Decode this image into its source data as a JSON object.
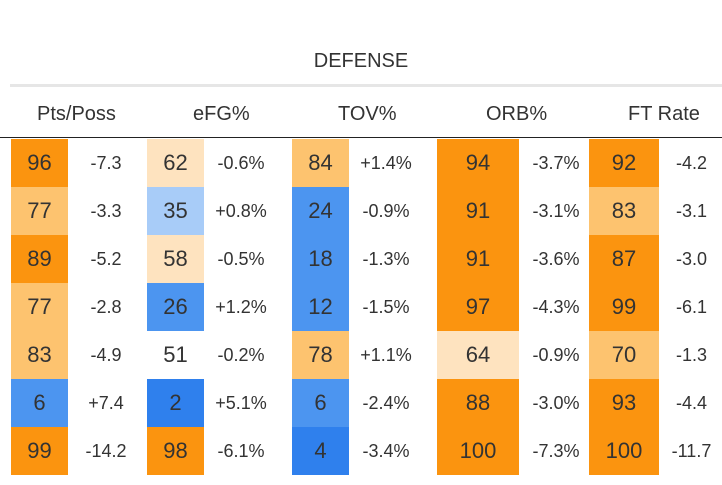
{
  "section": {
    "title": "DEFENSE"
  },
  "columns": [
    {
      "label": "Pts/Poss"
    },
    {
      "label": "eFG%"
    },
    {
      "label": "TOV%"
    },
    {
      "label": "ORB%"
    },
    {
      "label": "FT Rate"
    }
  ],
  "rows": [
    [
      {
        "pct": "96",
        "chg": "-7.3"
      },
      {
        "pct": "62",
        "chg": "-0.6%"
      },
      {
        "pct": "84",
        "chg": "+1.4%"
      },
      {
        "pct": "94",
        "chg": "-3.7%"
      },
      {
        "pct": "92",
        "chg": "-4.2"
      }
    ],
    [
      {
        "pct": "77",
        "chg": "-3.3"
      },
      {
        "pct": "35",
        "chg": "+0.8%"
      },
      {
        "pct": "24",
        "chg": "-0.9%"
      },
      {
        "pct": "91",
        "chg": "-3.1%"
      },
      {
        "pct": "83",
        "chg": "-3.1"
      }
    ],
    [
      {
        "pct": "89",
        "chg": "-5.2"
      },
      {
        "pct": "58",
        "chg": "-0.5%"
      },
      {
        "pct": "18",
        "chg": "-1.3%"
      },
      {
        "pct": "91",
        "chg": "-3.6%"
      },
      {
        "pct": "87",
        "chg": "-3.0"
      }
    ],
    [
      {
        "pct": "77",
        "chg": "-2.8"
      },
      {
        "pct": "26",
        "chg": "+1.2%"
      },
      {
        "pct": "12",
        "chg": "-1.5%"
      },
      {
        "pct": "97",
        "chg": "-4.3%"
      },
      {
        "pct": "99",
        "chg": "-6.1"
      }
    ],
    [
      {
        "pct": "83",
        "chg": "-4.9"
      },
      {
        "pct": "51",
        "chg": "-0.2%"
      },
      {
        "pct": "78",
        "chg": "+1.1%"
      },
      {
        "pct": "64",
        "chg": "-0.9%"
      },
      {
        "pct": "70",
        "chg": "-1.3"
      }
    ],
    [
      {
        "pct": "6",
        "chg": "+7.4"
      },
      {
        "pct": "2",
        "chg": "+5.1%"
      },
      {
        "pct": "6",
        "chg": "-2.4%"
      },
      {
        "pct": "88",
        "chg": "-3.0%"
      },
      {
        "pct": "93",
        "chg": "-4.4"
      }
    ],
    [
      {
        "pct": "99",
        "chg": "-14.2"
      },
      {
        "pct": "98",
        "chg": "-6.1%"
      },
      {
        "pct": "4",
        "chg": "-3.4%"
      },
      {
        "pct": "100",
        "chg": "-7.3%"
      },
      {
        "pct": "100",
        "chg": "-11.7"
      }
    ]
  ],
  "colors": {
    "orange": "#fb940f",
    "light_orange": "#fdc36f",
    "peach": "#fee3bf",
    "neutral": "#ffffff",
    "light_blue": "#a8ccf8",
    "blue": "#4c95f0",
    "dark_blue": "#2f80ed",
    "text": "#333333"
  }
}
